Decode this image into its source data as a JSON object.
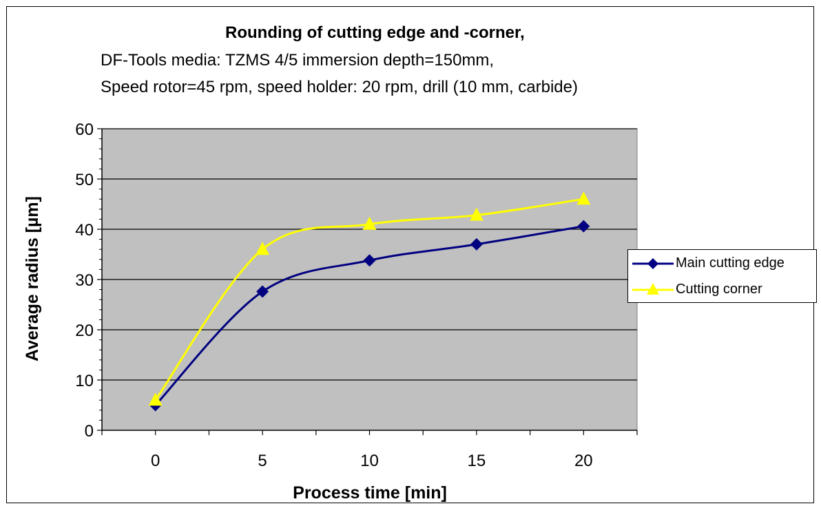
{
  "chart_data": {
    "type": "line",
    "title": "Rounding of cutting edge and -corner,",
    "subtitle_lines": [
      "DF-Tools  media: TZMS 4/5  immersion depth=150mm,",
      "Speed rotor=45 rpm, speed holder: 20 rpm, drill (10 mm, carbide)"
    ],
    "xlabel": "Process time [min]",
    "ylabel": "Average radius [µm]",
    "x_ticks": [
      "0",
      "5",
      "10",
      "15",
      "20"
    ],
    "y_ticks": [
      "0",
      "10",
      "20",
      "30",
      "40",
      "50",
      "60"
    ],
    "xlim": [
      -2.5,
      22.5
    ],
    "ylim": [
      0,
      60
    ],
    "grid": "horizontal major",
    "plot_background": "#c0c0c0",
    "legend_position": "right",
    "series": [
      {
        "name": "Main cutting edge",
        "color": "#000080",
        "marker": "diamond",
        "x": [
          0,
          5,
          10,
          15,
          20
        ],
        "y": [
          5,
          27.6,
          33.8,
          37,
          40.6
        ]
      },
      {
        "name": "Cutting corner",
        "color": "#ffff00",
        "marker": "triangle",
        "x": [
          0,
          5,
          10,
          15,
          20
        ],
        "y": [
          6,
          36,
          41,
          42.8,
          46
        ]
      }
    ]
  }
}
